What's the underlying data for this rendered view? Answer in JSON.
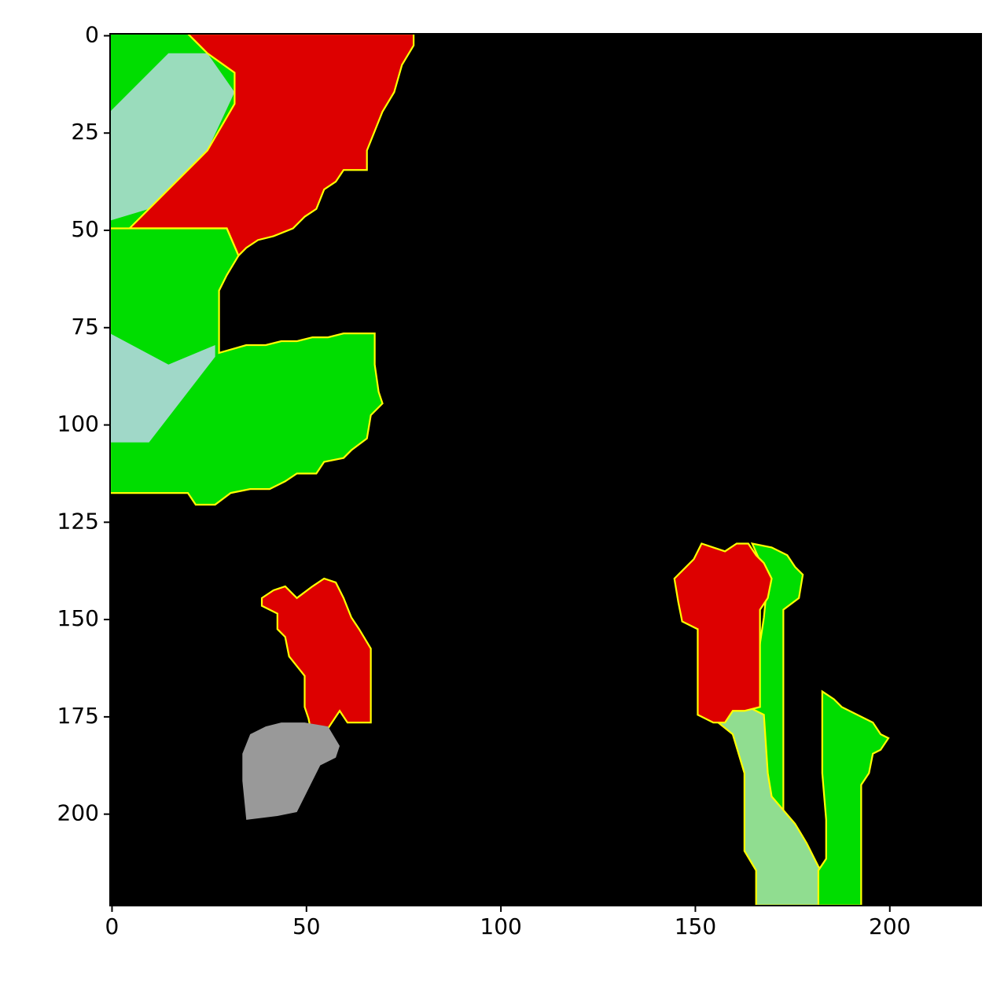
{
  "chart_data": {
    "type": "image",
    "xlim": [
      -0.5,
      223.5
    ],
    "ylim": [
      223.5,
      -0.5
    ],
    "xticks": [
      0,
      50,
      100,
      150,
      200
    ],
    "yticks": [
      0,
      25,
      50,
      75,
      100,
      125,
      150,
      175,
      200
    ]
  }
}
